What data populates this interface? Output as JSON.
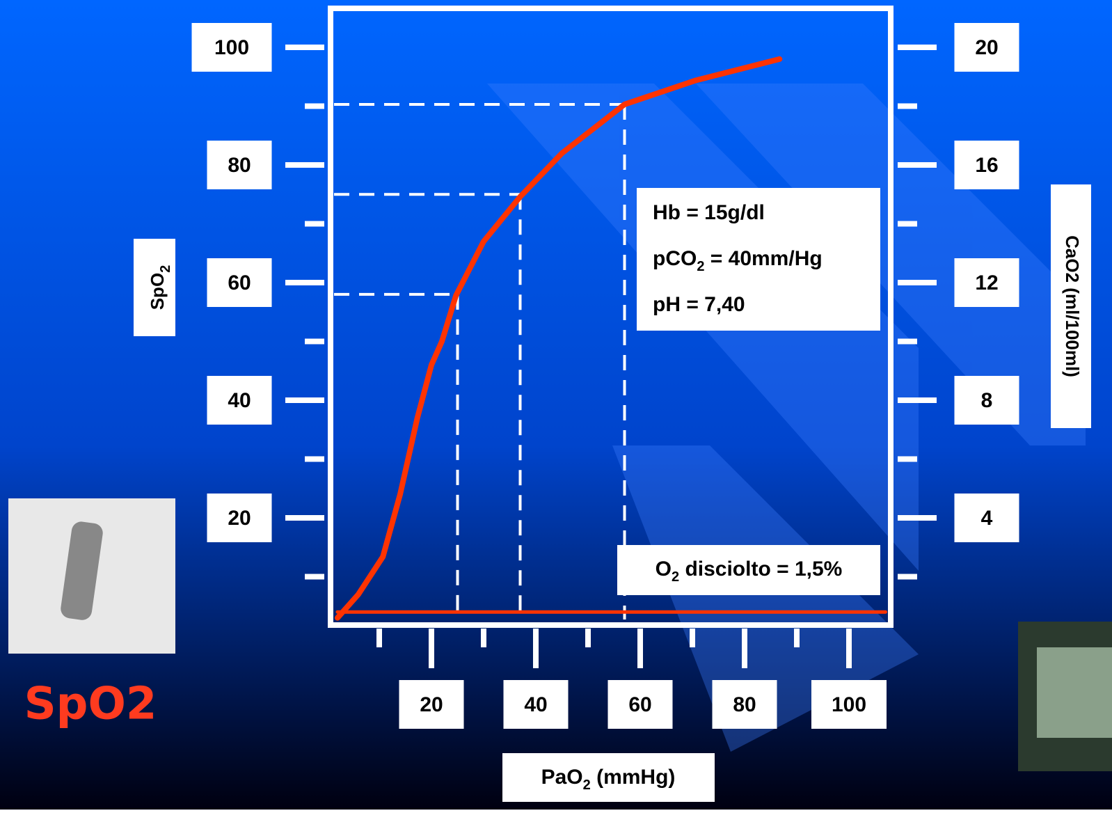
{
  "chart_data": {
    "type": "line",
    "x_label": [
      "PaO",
      "2",
      " (mmHg)"
    ],
    "y_label": [
      "SpO",
      "2"
    ],
    "y2_label": "CaO2 (ml/100ml)",
    "xlim": [
      0,
      107
    ],
    "xticks": [
      20,
      40,
      60,
      80,
      100
    ],
    "xticks_minor": [
      10,
      30,
      50,
      70,
      90
    ],
    "ylim": [
      0,
      107
    ],
    "yticks": [
      20,
      40,
      60,
      80,
      100
    ],
    "yticks_minor": [
      10,
      30,
      50,
      70,
      90
    ],
    "y2lim": [
      0,
      21.4
    ],
    "y2ticks": [
      4,
      8,
      12,
      16,
      20
    ],
    "series": [
      {
        "color": "#ff3300",
        "x": [
          2,
          6,
          10.7,
          14,
          17.3,
          20,
          22,
          24.7,
          30,
          37,
          45,
          57,
          70.7,
          86.7
        ],
        "values": [
          3,
          7,
          13.4,
          24,
          37,
          46,
          50,
          57.8,
          67,
          74.6,
          82,
          90.3,
          94.4,
          98
        ]
      },
      {
        "color": "#ff3300",
        "x": [
          2,
          107
        ],
        "values": [
          4,
          4
        ]
      }
    ],
    "guides": [
      {
        "x": 25,
        "y": 58
      },
      {
        "x": 37,
        "y": 75
      },
      {
        "x": 57,
        "y": 90.3
      }
    ],
    "annotations": [
      [
        "Hb = 15g/dl"
      ],
      [
        "pCO",
        "2",
        " = 40mm/Hg"
      ],
      [
        "pH = 7,40"
      ]
    ],
    "dissolved_note": [
      "O",
      "2",
      " disciolto = 1,5%"
    ],
    "caption": "SpO2"
  }
}
